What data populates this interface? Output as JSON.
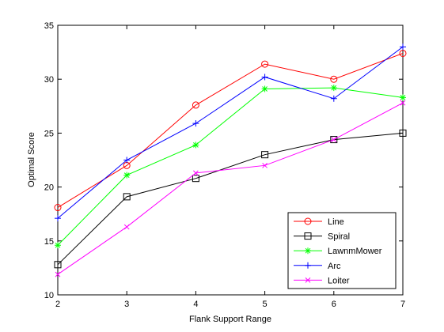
{
  "chart_data": {
    "type": "line",
    "title": "",
    "xlabel": "Flank Support Range",
    "ylabel": "Optimal Score",
    "x": [
      2,
      3,
      4,
      5,
      6,
      7
    ],
    "xlim": [
      2,
      7
    ],
    "ylim": [
      10,
      35
    ],
    "xticks": [
      "2",
      "3",
      "4",
      "5",
      "6",
      "7"
    ],
    "yticks": [
      "10",
      "15",
      "20",
      "25",
      "30",
      "35"
    ],
    "grid": false,
    "legend_position": "bottom-right",
    "series": [
      {
        "name": "Line",
        "color": "#ff0000",
        "marker": "circle",
        "values": [
          18.1,
          22.0,
          27.6,
          31.4,
          30.0,
          32.4
        ]
      },
      {
        "name": "Spiral",
        "color": "#000000",
        "marker": "square",
        "values": [
          12.8,
          19.1,
          20.8,
          23.0,
          24.4,
          25.0
        ]
      },
      {
        "name": "LawnmMower",
        "color": "#00ff00",
        "marker": "asterisk",
        "values": [
          14.6,
          21.1,
          23.9,
          29.1,
          29.2,
          28.3
        ]
      },
      {
        "name": "Arc",
        "color": "#0000ff",
        "marker": "plus",
        "values": [
          17.1,
          22.5,
          25.9,
          30.2,
          28.2,
          33.0
        ]
      },
      {
        "name": "Loiter",
        "color": "#ff00ff",
        "marker": "x",
        "values": [
          11.9,
          16.3,
          21.3,
          22.0,
          24.4,
          27.8
        ]
      }
    ]
  }
}
